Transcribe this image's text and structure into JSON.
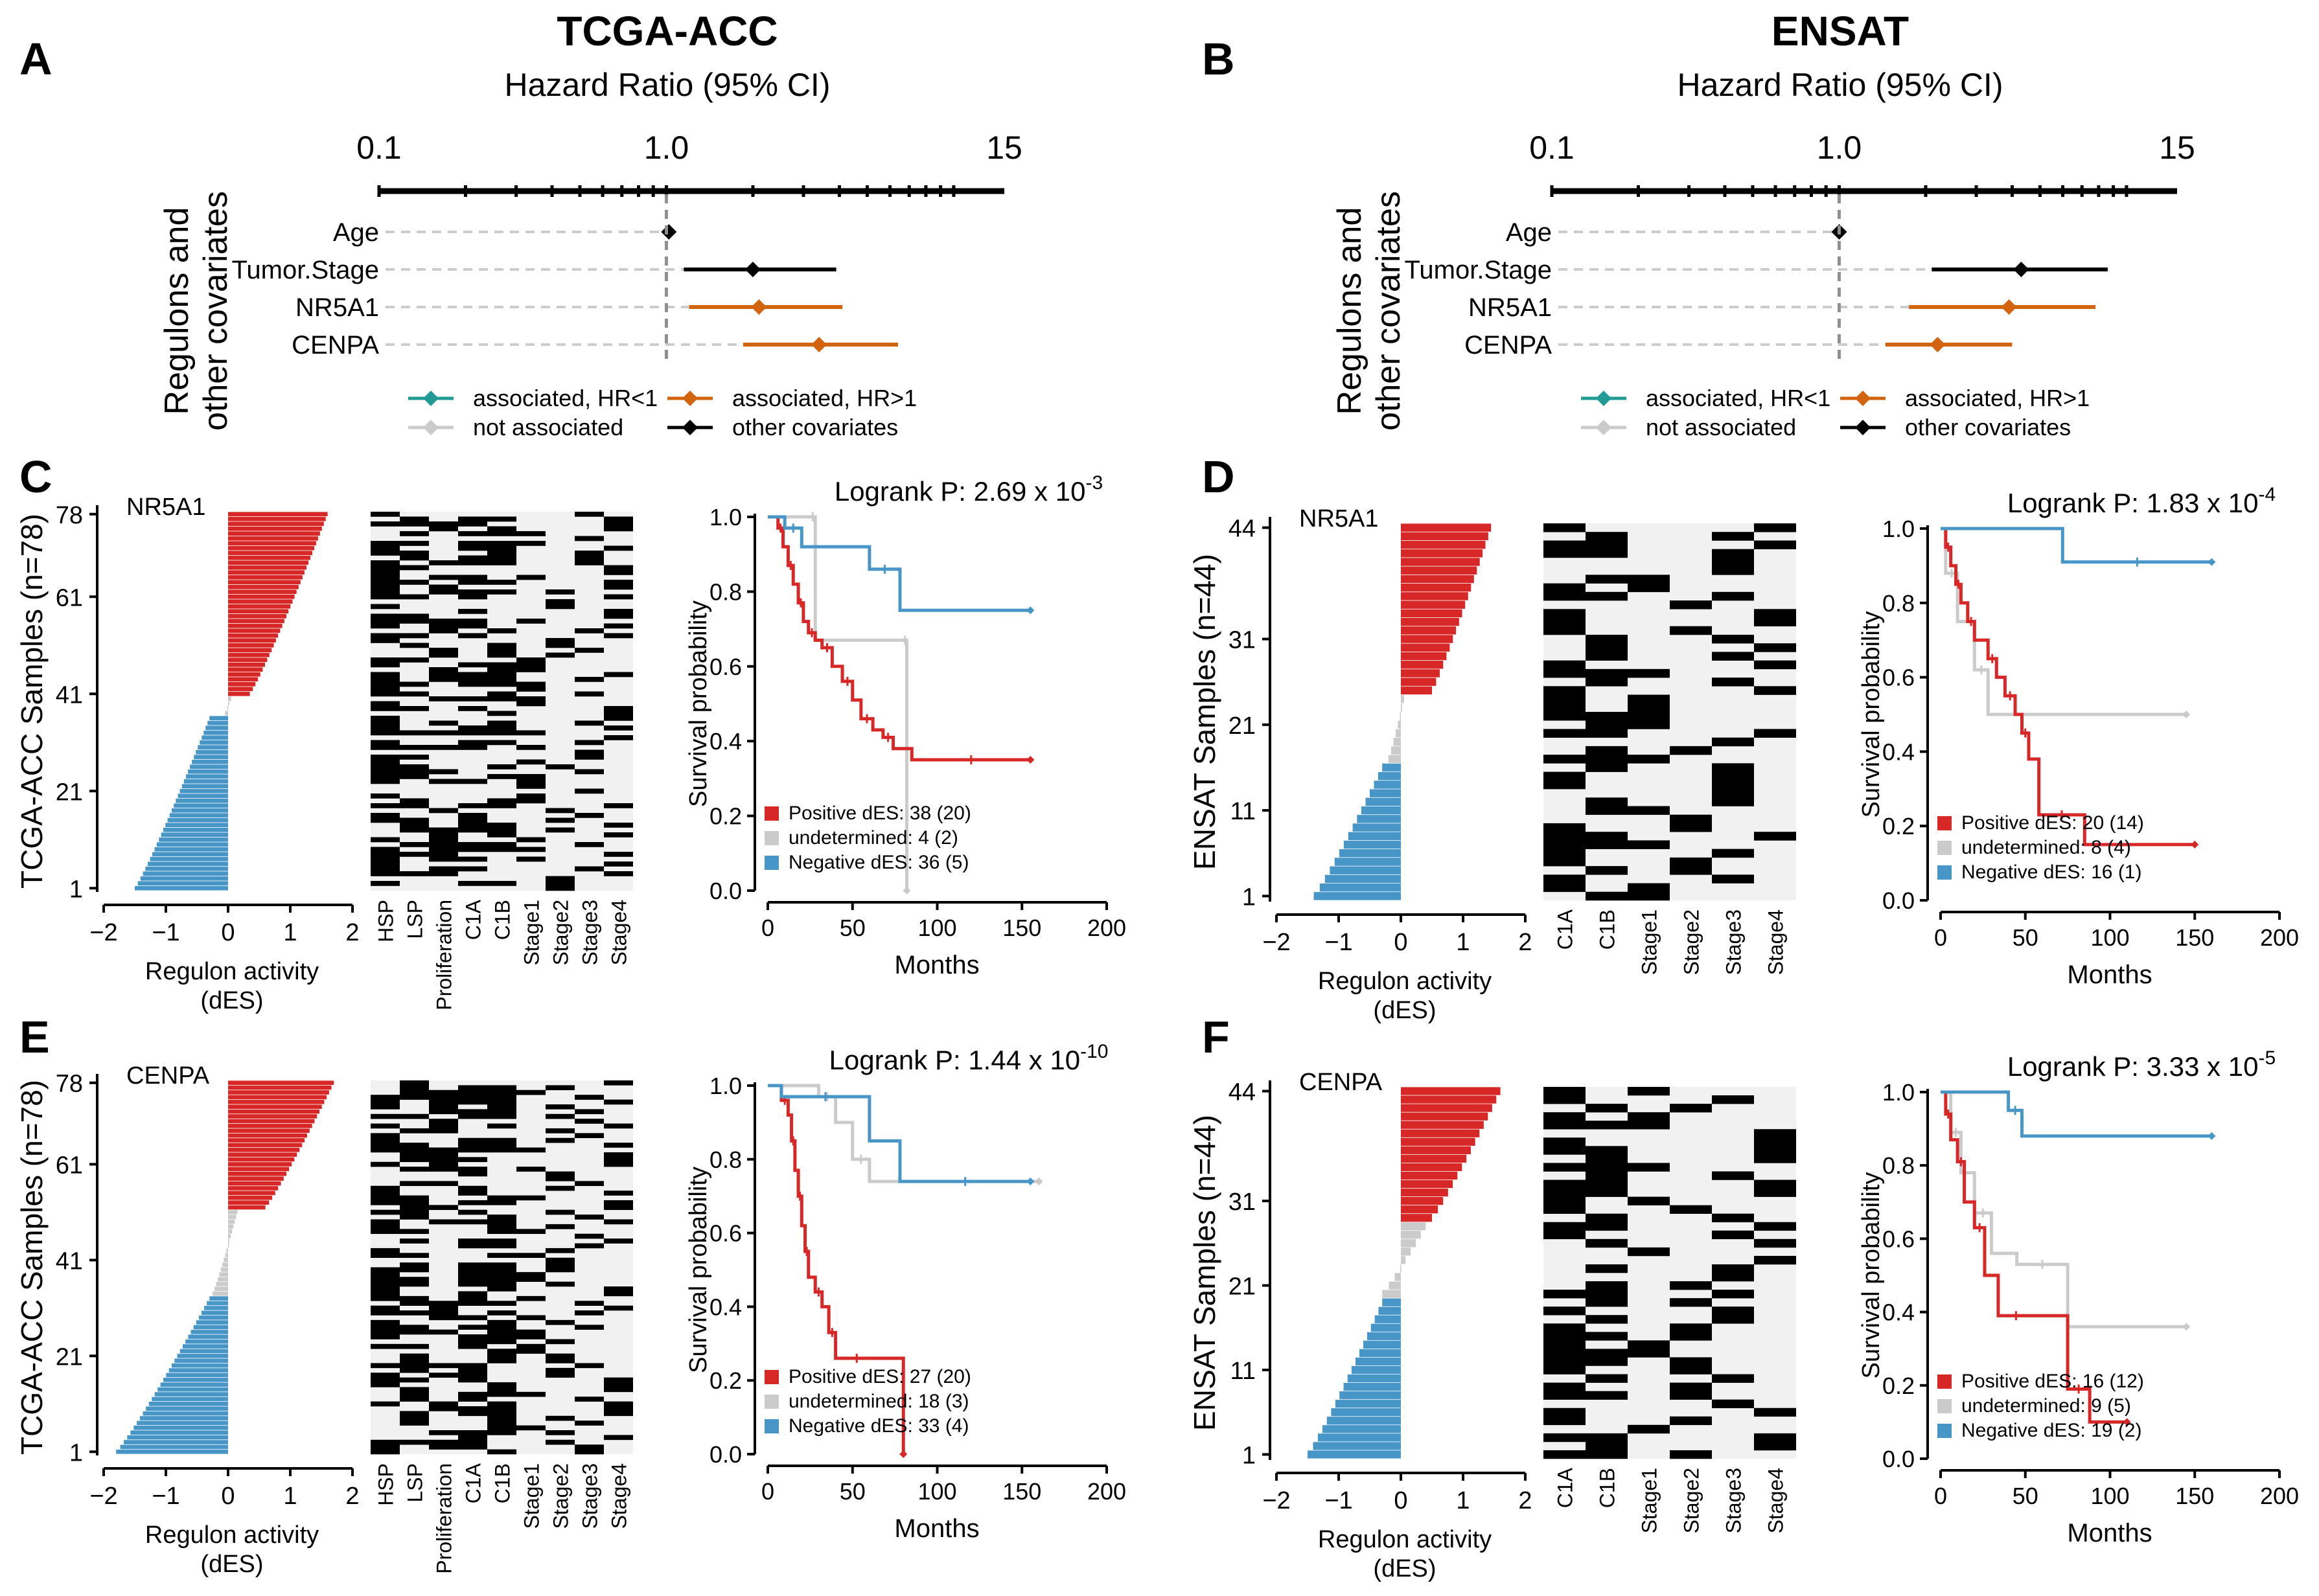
{
  "colors": {
    "red": "#d72727",
    "blue": "#4896c8",
    "grey": "#cbcbcb",
    "orange": "#d2640f",
    "teal": "#229a95",
    "black": "#000000",
    "heat_bg": "#f1f1f1",
    "dash": "#cccccc"
  },
  "chart_data": [
    {
      "type": "forest",
      "panel": "A",
      "title": "TCGA-ACC",
      "subtitle": "Hazard Ratio (95% CI)",
      "xscale": "log",
      "xlim": [
        0.1,
        15
      ],
      "ticks": [
        "0.1",
        "1.0",
        "15"
      ],
      "ylabel": [
        "Regulons and",
        "other covariates"
      ],
      "rows": [
        {
          "name": "Age",
          "hr": 1.02,
          "lo": 1.01,
          "hi": 1.03,
          "group": "other covariates"
        },
        {
          "name": "Tumor.Stage",
          "hr": 2.0,
          "lo": 1.15,
          "hi": 3.9,
          "group": "other covariates"
        },
        {
          "name": "NR5A1",
          "hr": 2.1,
          "lo": 1.2,
          "hi": 4.1,
          "group": "associated, HR>1"
        },
        {
          "name": "CENPA",
          "hr": 3.4,
          "lo": 1.85,
          "hi": 6.4,
          "group": "associated, HR>1"
        }
      ],
      "legend": [
        "associated, HR<1",
        "associated, HR>1",
        "not associated",
        "other covariates"
      ]
    },
    {
      "type": "forest",
      "panel": "B",
      "title": "ENSAT",
      "subtitle": "Hazard Ratio (95% CI)",
      "xscale": "log",
      "xlim": [
        0.1,
        15
      ],
      "ticks": [
        "0.1",
        "1.0",
        "15"
      ],
      "ylabel": [
        "Regulons and",
        "other covariates"
      ],
      "rows": [
        {
          "name": "Age",
          "hr": 1.0,
          "lo": 0.99,
          "hi": 1.01,
          "group": "other covariates"
        },
        {
          "name": "Tumor.Stage",
          "hr": 4.3,
          "lo": 2.1,
          "hi": 8.6,
          "group": "other covariates"
        },
        {
          "name": "NR5A1",
          "hr": 3.9,
          "lo": 1.75,
          "hi": 7.8,
          "group": "associated, HR>1"
        },
        {
          "name": "CENPA",
          "hr": 2.2,
          "lo": 1.45,
          "hi": 4.0,
          "group": "associated, HR>1"
        }
      ],
      "legend": [
        "associated, HR<1",
        "associated, HR>1",
        "not associated",
        "other covariates"
      ]
    },
    {
      "type": "bar",
      "panel": "C",
      "regulon": "NR5A1",
      "ylabel": "TCGA-ACC Samples (n=78)",
      "xlabel": "Regulon activity\n(dES)",
      "yticks": [
        "1",
        "21",
        "41",
        "61",
        "78"
      ],
      "xticks": [
        "−2",
        "−1",
        "0",
        "1",
        "2"
      ],
      "xlim": [
        -2,
        2
      ],
      "n": 78,
      "groups": [
        {
          "label": "negative",
          "count": 36,
          "from": -1.5,
          "to": -0.3
        },
        {
          "label": "undetermined",
          "count": 4,
          "from": -0.05,
          "to": 0.05
        },
        {
          "label": "positive",
          "count": 38,
          "from": 0.35,
          "to": 1.6
        }
      ]
    },
    {
      "type": "heatmap",
      "panel": "C",
      "rows": 78,
      "columns": [
        "HSP",
        "LSP",
        "Proliferation",
        "C1A",
        "C1B",
        "Stage1",
        "Stage2",
        "Stage3",
        "Stage4"
      ]
    },
    {
      "type": "line",
      "panel": "C",
      "title_prefix": "Logrank P: 2.69 x 10",
      "title_exp": "-3",
      "xlabel": "Months",
      "ylabel": "Survival probability",
      "xlim": [
        0,
        200
      ],
      "ylim": [
        0,
        1
      ],
      "xticks": [
        "0",
        "50",
        "100",
        "150",
        "200"
      ],
      "yticks": [
        "0.0",
        "0.2",
        "0.4",
        "0.6",
        "0.8",
        "1.0"
      ],
      "series": [
        {
          "name": "Positive dES: 38 (20)",
          "color": "red",
          "x": [
            0,
            6,
            9,
            12,
            15,
            18,
            21,
            24,
            28,
            32,
            38,
            44,
            50,
            55,
            62,
            68,
            74,
            85,
            155
          ],
          "y": [
            1,
            0.97,
            0.92,
            0.87,
            0.82,
            0.77,
            0.72,
            0.69,
            0.67,
            0.65,
            0.6,
            0.56,
            0.51,
            0.46,
            0.43,
            0.41,
            0.38,
            0.35,
            0.35
          ]
        },
        {
          "name": "undetermined: 4 (2)",
          "color": "grey",
          "x": [
            0,
            25,
            28,
            80,
            82
          ],
          "y": [
            1,
            1,
            0.67,
            0.67,
            0.0
          ]
        },
        {
          "name": "Negative dES: 36 (5)",
          "color": "blue",
          "x": [
            0,
            10,
            20,
            60,
            78,
            155
          ],
          "y": [
            1,
            0.97,
            0.92,
            0.86,
            0.75,
            0.75
          ]
        }
      ]
    },
    {
      "type": "bar",
      "panel": "D",
      "regulon": "NR5A1",
      "ylabel": "ENSAT Samples (n=44)",
      "xlabel": "Regulon activity\n(dES)",
      "yticks": [
        "1",
        "11",
        "21",
        "31",
        "44"
      ],
      "xticks": [
        "−2",
        "−1",
        "0",
        "1",
        "2"
      ],
      "xlim": [
        -2,
        2
      ],
      "n": 44,
      "groups": [
        {
          "label": "negative",
          "count": 16,
          "from": -1.4,
          "to": -0.3
        },
        {
          "label": "undetermined",
          "count": 8,
          "from": -0.2,
          "to": 0.05
        },
        {
          "label": "positive",
          "count": 20,
          "from": 0.5,
          "to": 1.45
        }
      ]
    },
    {
      "type": "heatmap",
      "panel": "D",
      "rows": 44,
      "columns": [
        "C1A",
        "C1B",
        "Stage1",
        "Stage2",
        "Stage3",
        "Stage4"
      ]
    },
    {
      "type": "line",
      "panel": "D",
      "title_prefix": "Logrank P: 1.83 x 10",
      "title_exp": "-4",
      "xlabel": "Months",
      "ylabel": "Survival probability",
      "xlim": [
        0,
        200
      ],
      "ylim": [
        0,
        1
      ],
      "xticks": [
        "0",
        "50",
        "100",
        "150",
        "200"
      ],
      "yticks": [
        "0.0",
        "0.2",
        "0.4",
        "0.6",
        "0.8",
        "1.0"
      ],
      "series": [
        {
          "name": "Positive dES: 20 (14)",
          "color": "red",
          "x": [
            0,
            3,
            6,
            9,
            12,
            16,
            20,
            28,
            33,
            38,
            44,
            48,
            52,
            58,
            85,
            150
          ],
          "y": [
            1,
            0.95,
            0.9,
            0.85,
            0.8,
            0.75,
            0.7,
            0.65,
            0.6,
            0.55,
            0.5,
            0.45,
            0.38,
            0.23,
            0.15,
            0.15
          ]
        },
        {
          "name": "undetermined: 8 (4)",
          "color": "grey",
          "x": [
            0,
            3,
            10,
            20,
            28,
            145
          ],
          "y": [
            1,
            0.88,
            0.75,
            0.62,
            0.5,
            0.5
          ]
        },
        {
          "name": "Negative dES: 16 (1)",
          "color": "blue",
          "x": [
            0,
            72,
            160
          ],
          "y": [
            1,
            0.91,
            0.91
          ]
        }
      ]
    },
    {
      "type": "bar",
      "panel": "E",
      "regulon": "CENPA",
      "ylabel": "TCGA-ACC Samples (n=78)",
      "xlabel": "Regulon activity\n(dES)",
      "yticks": [
        "1",
        "21",
        "41",
        "61",
        "78"
      ],
      "xticks": [
        "−2",
        "−1",
        "0",
        "1",
        "2"
      ],
      "xlim": [
        -2,
        2
      ],
      "n": 78,
      "groups": [
        {
          "label": "negative",
          "count": 33,
          "from": -1.8,
          "to": -0.3
        },
        {
          "label": "undetermined",
          "count": 18,
          "from": -0.25,
          "to": 0.15
        },
        {
          "label": "positive",
          "count": 27,
          "from": 0.6,
          "to": 1.7
        }
      ]
    },
    {
      "type": "heatmap",
      "panel": "E",
      "rows": 78,
      "columns": [
        "HSP",
        "LSP",
        "Proliferation",
        "C1A",
        "C1B",
        "Stage1",
        "Stage2",
        "Stage3",
        "Stage4"
      ]
    },
    {
      "type": "line",
      "panel": "E",
      "title_prefix": "Logrank P: 1.44 x 10",
      "title_exp": "-10",
      "xlabel": "Months",
      "ylabel": "Survival probability",
      "xlim": [
        0,
        200
      ],
      "ylim": [
        0,
        1
      ],
      "xticks": [
        "0",
        "50",
        "100",
        "150",
        "200"
      ],
      "yticks": [
        "0.0",
        "0.2",
        "0.4",
        "0.6",
        "0.8",
        "1.0"
      ],
      "series": [
        {
          "name": "Positive dES: 27 (20)",
          "color": "red",
          "x": [
            0,
            8,
            12,
            14,
            16,
            18,
            20,
            22,
            24,
            28,
            32,
            36,
            40,
            45,
            60,
            80
          ],
          "y": [
            1,
            0.96,
            0.92,
            0.85,
            0.77,
            0.7,
            0.62,
            0.55,
            0.48,
            0.44,
            0.4,
            0.33,
            0.26,
            0.26,
            0.26,
            0.0
          ]
        },
        {
          "name": "undetermined: 18 (3)",
          "color": "grey",
          "x": [
            0,
            30,
            40,
            50,
            60,
            160
          ],
          "y": [
            1,
            0.97,
            0.9,
            0.8,
            0.74,
            0.74
          ]
        },
        {
          "name": "Negative dES: 33 (4)",
          "color": "blue",
          "x": [
            0,
            8,
            60,
            78,
            155
          ],
          "y": [
            1,
            0.97,
            0.85,
            0.74,
            0.74
          ]
        }
      ]
    },
    {
      "type": "bar",
      "panel": "F",
      "regulon": "CENPA",
      "ylabel": "ENSAT Samples (n=44)",
      "xlabel": "Regulon activity\n(dES)",
      "yticks": [
        "1",
        "11",
        "21",
        "31",
        "44"
      ],
      "xticks": [
        "−2",
        "−1",
        "0",
        "1",
        "2"
      ],
      "xlim": [
        -2,
        2
      ],
      "n": 44,
      "groups": [
        {
          "label": "negative",
          "count": 19,
          "from": -1.5,
          "to": -0.3
        },
        {
          "label": "undetermined",
          "count": 9,
          "from": -0.3,
          "to": 0.4
        },
        {
          "label": "positive",
          "count": 16,
          "from": 0.5,
          "to": 1.6
        }
      ]
    },
    {
      "type": "heatmap",
      "panel": "F",
      "rows": 44,
      "columns": [
        "C1A",
        "C1B",
        "Stage1",
        "Stage2",
        "Stage3",
        "Stage4"
      ]
    },
    {
      "type": "line",
      "panel": "F",
      "title_prefix": "Logrank P: 3.33 x 10",
      "title_exp": "-5",
      "xlabel": "Months",
      "ylabel": "Survival probability",
      "xlim": [
        0,
        200
      ],
      "ylim": [
        0,
        1
      ],
      "xticks": [
        "0",
        "50",
        "100",
        "150",
        "200"
      ],
      "yticks": [
        "0.0",
        "0.2",
        "0.4",
        "0.6",
        "0.8",
        "1.0"
      ],
      "series": [
        {
          "name": "Positive dES: 16 (12)",
          "color": "red",
          "x": [
            0,
            3,
            6,
            10,
            14,
            20,
            26,
            34,
            55,
            75,
            88,
            110
          ],
          "y": [
            1,
            0.94,
            0.87,
            0.81,
            0.7,
            0.63,
            0.5,
            0.39,
            0.39,
            0.19,
            0.1,
            0.1
          ]
        },
        {
          "name": "undetermined: 9 (5)",
          "color": "grey",
          "x": [
            0,
            6,
            12,
            20,
            30,
            45,
            75,
            145
          ],
          "y": [
            1,
            0.89,
            0.78,
            0.67,
            0.56,
            0.53,
            0.36,
            0.36
          ]
        },
        {
          "name": "Negative dES: 19 (2)",
          "color": "blue",
          "x": [
            0,
            40,
            48,
            160
          ],
          "y": [
            1,
            0.95,
            0.88,
            0.88
          ]
        }
      ]
    }
  ]
}
